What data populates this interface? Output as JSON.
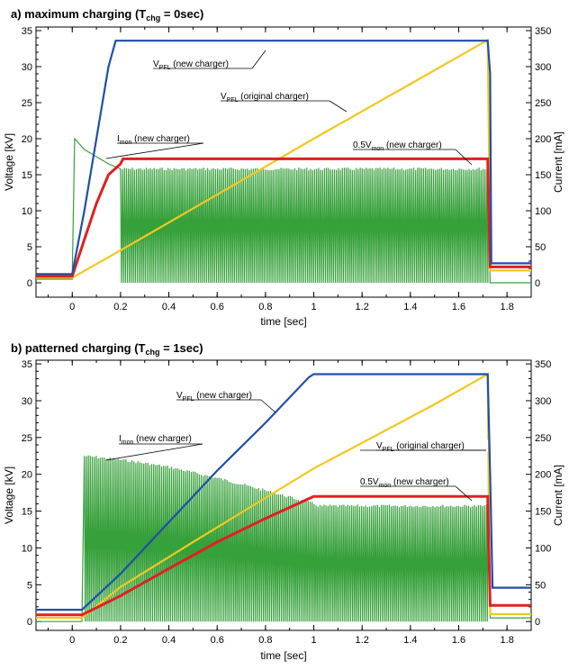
{
  "chart_data": [
    {
      "type": "line",
      "title": "a) maximum charging",
      "title_param": {
        "base": "T",
        "sub": "chg",
        "rest": " = 0sec"
      },
      "xlabel": "time [sec]",
      "ylabel": "Voltage [kV]",
      "y2label": "Current [mA]",
      "xlim": [
        -0.15,
        1.9
      ],
      "ylim": [
        -2,
        35.5
      ],
      "y2lim": [
        -20,
        355
      ],
      "xticks": [
        "0",
        "0.2",
        "0.4",
        "0.6",
        "0.8",
        "1",
        "1.2",
        "1.4",
        "1.6",
        "1.8"
      ],
      "yticks": [
        "0",
        "5",
        "10",
        "15",
        "20",
        "25",
        "30",
        "35"
      ],
      "y2ticks": [
        "0",
        "50",
        "100",
        "150",
        "200",
        "250",
        "300",
        "350"
      ],
      "grid": false,
      "series": [
        {
          "name": "VPFL (new charger)",
          "color": "#1f4fa8",
          "axis": "left",
          "points": [
            [
              -0.15,
              1.2
            ],
            [
              0,
              1.2
            ],
            [
              0.05,
              10
            ],
            [
              0.1,
              20
            ],
            [
              0.15,
              30
            ],
            [
              0.18,
              33.6
            ],
            [
              0.5,
              33.6
            ],
            [
              1.0,
              33.6
            ],
            [
              1.5,
              33.6
            ],
            [
              1.72,
              33.6
            ],
            [
              1.73,
              29
            ],
            [
              1.735,
              2.7
            ],
            [
              1.9,
              2.7
            ]
          ]
        },
        {
          "name": "VPFL (original charger)",
          "color": "#f2c81e",
          "axis": "left",
          "points": [
            [
              -0.15,
              0.7
            ],
            [
              0,
              0.7
            ],
            [
              0.2,
              4.5
            ],
            [
              0.5,
              10.3
            ],
            [
              1.0,
              20.0
            ],
            [
              1.5,
              29.5
            ],
            [
              1.72,
              33.7
            ],
            [
              1.725,
              20
            ],
            [
              1.73,
              1.7
            ],
            [
              1.9,
              1.7
            ]
          ]
        },
        {
          "name": "0.5Vmon (new charger)",
          "color": "#e02020",
          "axis": "left",
          "points": [
            [
              -0.15,
              0.9
            ],
            [
              0,
              0.9
            ],
            [
              0.05,
              6
            ],
            [
              0.1,
              11
            ],
            [
              0.15,
              15
            ],
            [
              0.2,
              16.5
            ],
            [
              0.21,
              17.2
            ],
            [
              1.72,
              17.2
            ],
            [
              1.73,
              2.2
            ],
            [
              1.9,
              2.2
            ]
          ]
        },
        {
          "name": "Imon (new charger)",
          "color": "#36a03a",
          "axis": "right",
          "points": [
            [
              -0.15,
              5
            ],
            [
              0,
              5
            ],
            [
              0.01,
              200
            ],
            [
              0.05,
              185
            ],
            [
              0.1,
              175
            ],
            [
              0.15,
              165
            ],
            [
              0.2,
              158
            ],
            [
              1.72,
              158
            ],
            [
              1.73,
              0
            ],
            [
              1.9,
              0
            ]
          ],
          "burst_low": 0,
          "burst_range": [
            0.2,
            1.72
          ]
        }
      ],
      "annotations": [
        {
          "base": "V",
          "sub": "PFL",
          "text": " (new charger)"
        },
        {
          "base": "V",
          "sub": "PFL",
          "text": " (original charger)"
        },
        {
          "base": "I",
          "sub": "mon",
          "text": " (new charger)"
        },
        {
          "base": "0.5V",
          "sub": "mon",
          "text": " (new charger)"
        }
      ]
    },
    {
      "type": "line",
      "title": "b) patterned charging",
      "title_param": {
        "base": "T",
        "sub": "chg",
        "rest": " = 1sec"
      },
      "xlabel": "time [sec]",
      "ylabel": "Voltage [kV]",
      "y2label": "Current [mA]",
      "xlim": [
        -0.15,
        1.9
      ],
      "ylim": [
        -1.2,
        35.5
      ],
      "y2lim": [
        -12,
        355
      ],
      "xticks": [
        "0",
        "0.2",
        "0.4",
        "0.6",
        "0.8",
        "1",
        "1.2",
        "1.4",
        "1.6",
        "1.8"
      ],
      "yticks": [
        "0",
        "5",
        "10",
        "15",
        "20",
        "25",
        "30",
        "35"
      ],
      "y2ticks": [
        "0",
        "50",
        "100",
        "150",
        "200",
        "250",
        "300",
        "350"
      ],
      "grid": false,
      "series": [
        {
          "name": "VPFL (new charger)",
          "color": "#1f4fa8",
          "axis": "left",
          "points": [
            [
              -0.15,
              1.6
            ],
            [
              0.04,
              1.6
            ],
            [
              0.2,
              6.5
            ],
            [
              0.4,
              13.5
            ],
            [
              0.6,
              20.5
            ],
            [
              0.8,
              27
            ],
            [
              0.98,
              33.2
            ],
            [
              1.0,
              33.6
            ],
            [
              1.72,
              33.6
            ],
            [
              1.73,
              20
            ],
            [
              1.74,
              4.6
            ],
            [
              1.9,
              4.6
            ]
          ]
        },
        {
          "name": "VPFL (original charger)",
          "color": "#f2c81e",
          "axis": "left",
          "points": [
            [
              -0.15,
              0.5
            ],
            [
              0.04,
              0.5
            ],
            [
              0.2,
              4.7
            ],
            [
              0.5,
              10.8
            ],
            [
              1.0,
              20.8
            ],
            [
              1.5,
              29.5
            ],
            [
              1.72,
              33.6
            ],
            [
              1.725,
              15
            ],
            [
              1.73,
              1.0
            ],
            [
              1.9,
              1.0
            ]
          ]
        },
        {
          "name": "0.5Vmon (new charger)",
          "color": "#e02020",
          "axis": "left",
          "points": [
            [
              -0.15,
              0.9
            ],
            [
              0.04,
              0.9
            ],
            [
              0.2,
              3.5
            ],
            [
              0.4,
              7.2
            ],
            [
              0.6,
              10.8
            ],
            [
              0.8,
              14
            ],
            [
              1.0,
              17.0
            ],
            [
              1.72,
              17.0
            ],
            [
              1.73,
              2.2
            ],
            [
              1.9,
              2.2
            ]
          ]
        },
        {
          "name": "Imon (new charger)",
          "color": "#36a03a",
          "axis": "right",
          "points": [
            [
              -0.15,
              0
            ],
            [
              0.04,
              0
            ],
            [
              0.05,
              225
            ],
            [
              0.2,
              220
            ],
            [
              0.4,
              210
            ],
            [
              0.6,
              195
            ],
            [
              0.8,
              178
            ],
            [
              1.0,
              160
            ],
            [
              1.02,
              157
            ],
            [
              1.72,
              157
            ],
            [
              1.73,
              5
            ],
            [
              1.9,
              5
            ]
          ],
          "burst_low": 0,
          "burst_range": [
            0.05,
            1.72
          ]
        }
      ],
      "annotations": [
        {
          "base": "V",
          "sub": "PFL",
          "text": " (new charger)"
        },
        {
          "base": "V",
          "sub": "PFL",
          "text": " (original charger)"
        },
        {
          "base": "I",
          "sub": "mon",
          "text": " (new charger)"
        },
        {
          "base": "0.5V",
          "sub": "mon",
          "text": " (new charger)"
        }
      ]
    }
  ]
}
